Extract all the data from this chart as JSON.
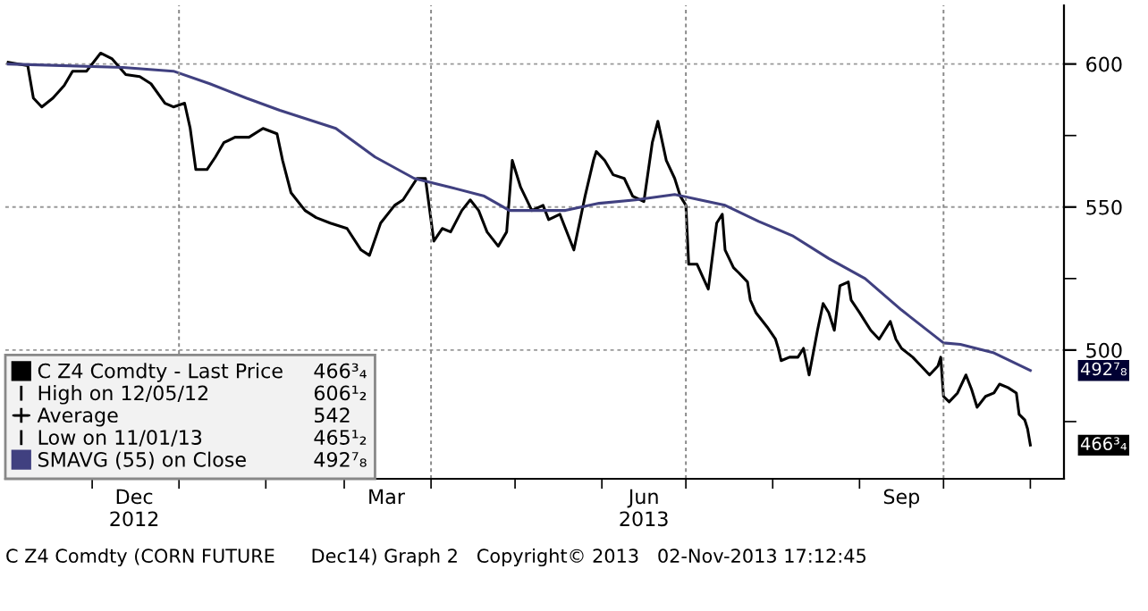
{
  "chart_data": {
    "type": "line",
    "x": [
      "2012-11-01",
      "2012-11-08",
      "2012-11-10",
      "2012-11-13",
      "2012-11-17",
      "2012-11-21",
      "2012-11-24",
      "2012-11-29",
      "2012-12-04",
      "2012-12-08",
      "2012-12-13",
      "2012-12-18",
      "2012-12-22",
      "2012-12-27",
      "2012-12-30",
      "2013-01-03",
      "2013-01-05",
      "2013-01-07",
      "2013-01-11",
      "2013-01-14",
      "2013-01-17",
      "2013-01-21",
      "2013-01-26",
      "2013-01-31",
      "2013-02-05",
      "2013-02-07",
      "2013-02-10",
      "2013-02-15",
      "2013-02-19",
      "2013-02-24",
      "2013-03-02",
      "2013-03-07",
      "2013-03-10",
      "2013-03-14",
      "2013-03-19",
      "2013-03-22",
      "2013-03-27",
      "2013-03-30",
      "2013-04-02",
      "2013-04-05",
      "2013-04-08",
      "2013-04-12",
      "2013-04-15",
      "2013-04-18",
      "2013-04-21",
      "2013-04-25",
      "2013-04-28",
      "2013-04-30",
      "2013-05-03",
      "2013-05-07",
      "2013-05-11",
      "2013-05-13",
      "2013-05-17",
      "2013-05-20",
      "2013-05-22",
      "2013-05-24",
      "2013-05-26",
      "2013-05-29",
      "2013-05-30",
      "2013-06-02",
      "2013-06-05",
      "2013-06-09",
      "2013-06-12",
      "2013-06-16",
      "2013-06-19",
      "2013-06-21",
      "2013-06-24",
      "2013-06-27",
      "2013-06-29",
      "2013-07-01",
      "2013-07-02",
      "2013-07-05",
      "2013-07-07",
      "2013-07-09",
      "2013-07-12",
      "2013-07-14",
      "2013-07-15",
      "2013-07-18",
      "2013-07-20",
      "2013-07-23",
      "2013-07-24",
      "2013-07-26",
      "2013-07-30",
      "2013-08-02",
      "2013-08-03",
      "2013-08-04",
      "2013-08-07",
      "2013-08-10",
      "2013-08-12",
      "2013-08-14",
      "2013-08-17",
      "2013-08-19",
      "2013-08-21",
      "2013-08-23",
      "2013-08-25",
      "2013-08-28",
      "2013-08-29",
      "2013-09-01",
      "2013-09-03",
      "2013-09-05",
      "2013-09-08",
      "2013-09-10",
      "2013-09-12",
      "2013-09-14",
      "2013-09-16",
      "2013-09-20",
      "2013-09-23",
      "2013-09-26",
      "2013-09-29",
      "2013-09-30",
      "2013-10-01",
      "2013-10-03",
      "2013-10-06",
      "2013-10-09",
      "2013-10-11",
      "2013-10-13",
      "2013-10-16",
      "2013-10-19",
      "2013-10-21",
      "2013-10-24",
      "2013-10-27",
      "2013-10-28",
      "2013-10-30",
      "2013-10-31",
      "2013-11-01"
    ],
    "series": [
      {
        "name": "C Z4 Comdty - Last Price",
        "color": "#000000",
        "values": [
          600.6,
          599.4,
          588.1,
          585,
          588.1,
          592.5,
          597.5,
          597.5,
          603.8,
          601.9,
          596.3,
          595.6,
          593.1,
          586.3,
          585,
          586.3,
          577.5,
          563.1,
          563.1,
          567.5,
          572.5,
          574.4,
          574.4,
          577.5,
          575.6,
          566.3,
          555,
          548.8,
          546.3,
          544.4,
          542.5,
          535,
          533.1,
          544.4,
          550.6,
          552.5,
          560,
          560,
          538.1,
          542.5,
          541.3,
          548.8,
          552.5,
          548.8,
          541.3,
          536.3,
          541.3,
          566.3,
          556.9,
          548.8,
          550.6,
          545.6,
          547.5,
          540,
          535,
          544.4,
          553.8,
          566.3,
          569.4,
          566.3,
          561.3,
          560,
          553.8,
          551.9,
          572.5,
          580,
          566.3,
          560,
          553.8,
          550.6,
          530,
          530,
          525.6,
          521.3,
          544.4,
          547.5,
          535,
          528.8,
          526.9,
          523.8,
          517.5,
          513.1,
          508.1,
          503.8,
          500.6,
          496.3,
          497.5,
          497.5,
          500.6,
          491.3,
          506.9,
          516.3,
          513.1,
          506.9,
          522.5,
          523.8,
          517.5,
          513.1,
          510,
          506.9,
          503.8,
          506.9,
          510,
          503.8,
          500.6,
          497.5,
          494.4,
          491.3,
          494.4,
          497.5,
          483.8,
          481.9,
          485,
          491.3,
          486.3,
          480,
          483.8,
          485,
          488.1,
          486.9,
          485,
          477.5,
          475.6,
          472.5,
          466.8
        ]
      },
      {
        "name": "SMAVG (55) on Close",
        "color": "#404080",
        "x": [
          "2012-11-01",
          "2012-12-12",
          "2012-12-30",
          "2013-01-12",
          "2013-01-25",
          "2013-02-06",
          "2013-02-26",
          "2013-03-12",
          "2013-03-26",
          "2013-04-08",
          "2013-04-20",
          "2013-04-29",
          "2013-05-19",
          "2013-05-31",
          "2013-06-13",
          "2013-06-27",
          "2013-07-06",
          "2013-07-15",
          "2013-07-27",
          "2013-08-08",
          "2013-08-21",
          "2013-09-03",
          "2013-09-16",
          "2013-10-01",
          "2013-10-07",
          "2013-10-19",
          "2013-11-01"
        ],
        "values": [
          600,
          598.8,
          597.5,
          593.1,
          588.1,
          583.8,
          577.5,
          567.5,
          560,
          556.9,
          553.8,
          548.8,
          548.8,
          551.3,
          552.5,
          554.4,
          552.5,
          550.6,
          545,
          540,
          532,
          525,
          514,
          502.5,
          502,
          499,
          492.9
        ]
      }
    ],
    "xlim": [
      "2012-10-31",
      "2013-11-13"
    ],
    "xticks": [
      {
        "value": "2012-12-16",
        "label": "Dec\n2012"
      },
      {
        "value": "2013-03-16",
        "label": "Mar"
      },
      {
        "value": "2013-06-16",
        "label": "Jun\n2013"
      },
      {
        "value": "2013-09-16",
        "label": "Sep"
      },
      {
        "value": "2012-12-01",
        "label": null
      },
      {
        "value": "2013-01-01",
        "label": null
      },
      {
        "value": "2013-02-01",
        "label": null
      },
      {
        "value": "2013-03-01",
        "label": null
      },
      {
        "value": "2013-04-01",
        "label": null
      },
      {
        "value": "2013-05-01",
        "label": null
      },
      {
        "value": "2013-06-01",
        "label": null
      },
      {
        "value": "2013-07-01",
        "label": null
      },
      {
        "value": "2013-08-01",
        "label": null
      },
      {
        "value": "2013-09-01",
        "label": null
      },
      {
        "value": "2013-10-01",
        "label": null
      },
      {
        "value": "2013-11-01",
        "label": null
      }
    ],
    "ylim": [
      455,
      620.5
    ],
    "yticks": [
      600,
      550,
      500,
      {
        "value": 575,
        "label": null
      },
      {
        "value": 525,
        "label": null
      },
      {
        "value": 475,
        "label": null
      }
    ],
    "grid": "y",
    "legend": "bottom left",
    "ref_lines": [
      {
        "axis": "x",
        "value": "2013-01-01",
        "color": "#888888",
        "line_style": "dashed"
      },
      {
        "axis": "x",
        "value": "2013-04-01",
        "color": "#888888",
        "line_style": "dashed"
      },
      {
        "axis": "x",
        "value": "2013-07-01",
        "color": "#888888",
        "line_style": "dashed"
      },
      {
        "axis": "x",
        "value": "2013-10-01",
        "color": "#888888",
        "line_style": "dashed"
      }
    ],
    "annotations": [
      "High on 12/05/12",
      "Average",
      "Low on 11/01/13",
      "466³₄",
      "606¹₂",
      "542",
      "465¹₂",
      "492⁷₈",
      "C Z4 Comdty (CORN FUTURE      Dec14) Graph 2   Copyright© 2013   02-Nov-2013 17:12:45",
      {
        "text": "492⁷₈",
        "x": "2013-11-01",
        "y": 492.875
      },
      {
        "text": "466³₄",
        "x": "2013-11-01",
        "y": 466.75
      }
    ]
  }
}
